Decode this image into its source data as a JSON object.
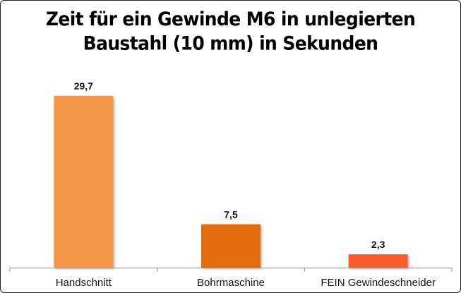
{
  "chart_data": {
    "type": "bar",
    "title_lines": [
      "Zeit für ein Gewinde M6 in unlegierten",
      "Baustahl (10 mm) in Sekunden"
    ],
    "categories": [
      "Handschnitt",
      "Bohrmaschine",
      "FEIN Gewindeschneider"
    ],
    "values": [
      29.7,
      7.5,
      2.3
    ],
    "data_labels": [
      "29,7",
      "7,5",
      "2,3"
    ],
    "xlabel": "",
    "ylabel": "",
    "ylim": [
      0,
      30
    ],
    "grid": false,
    "legend": "none",
    "colors": [
      "#F79646",
      "#E46C0A",
      "#F95B2F"
    ]
  }
}
